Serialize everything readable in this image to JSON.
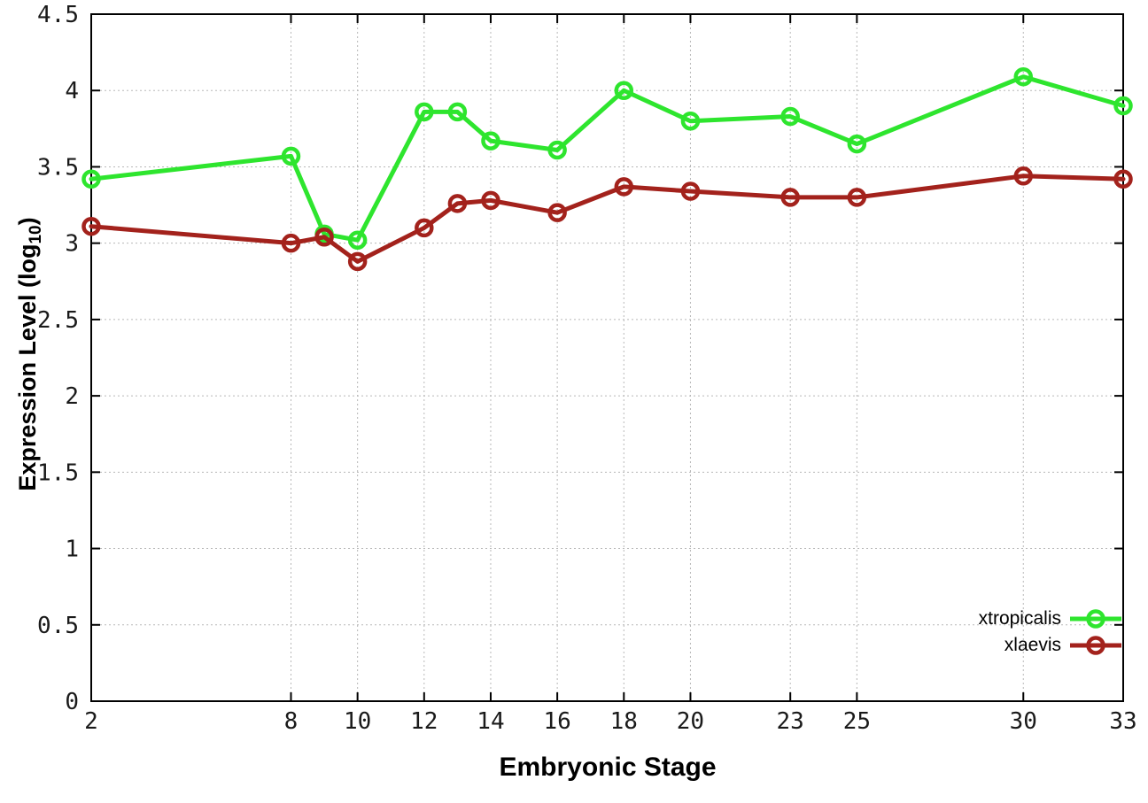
{
  "figure": {
    "background": "#ffffff",
    "axis_color": "#000000",
    "grid_color": "#b8b8b8"
  },
  "chart_data": {
    "type": "line",
    "title": "",
    "xlabel": "Embryonic Stage",
    "ylabel": "Expression Level (log10)",
    "ylabel_parts": {
      "main": "Expression Level (log",
      "sub": "10",
      "close": ")"
    },
    "x": [
      2,
      8,
      9,
      10,
      12,
      13,
      14,
      16,
      18,
      20,
      23,
      25,
      30,
      33
    ],
    "xticks": [
      2,
      8,
      10,
      12,
      14,
      16,
      18,
      20,
      23,
      25,
      30,
      33
    ],
    "yticks": [
      0,
      0.5,
      1,
      1.5,
      2,
      2.5,
      3,
      3.5,
      4,
      4.5
    ],
    "xlim": [
      2,
      33
    ],
    "ylim": [
      0,
      4.5
    ],
    "grid": true,
    "legend_position": "bottom-right-inside",
    "marker": "open-circle",
    "series": [
      {
        "name": "xtropicalis",
        "color": "#2ee52e",
        "values": [
          3.42,
          3.57,
          3.06,
          3.02,
          3.86,
          3.86,
          3.67,
          3.61,
          4.0,
          3.8,
          3.83,
          3.65,
          4.09,
          3.9
        ]
      },
      {
        "name": "xlaevis",
        "color": "#a3221c",
        "values": [
          3.11,
          3.0,
          3.04,
          2.88,
          3.1,
          3.26,
          3.28,
          3.2,
          3.37,
          3.34,
          3.3,
          3.3,
          3.44,
          3.42
        ]
      }
    ]
  }
}
